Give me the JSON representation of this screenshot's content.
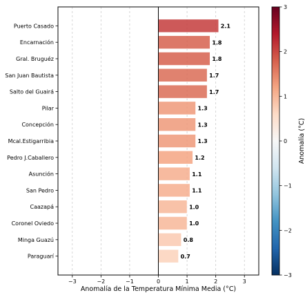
{
  "chart_data": {
    "type": "bar",
    "orientation": "horizontal",
    "categories": [
      "Puerto Casado",
      "Encarnación",
      "Gral. Bruguéz",
      "San Juan Bautista",
      "Salto del Guairá",
      "Pilar",
      "Concepción",
      "Mcal.Estigarribia",
      "Pedro J.Caballero",
      "Asunción",
      "San Pedro",
      "Caazapá",
      "Coronel Oviedo",
      "Minga Guazú",
      "Paraguarí"
    ],
    "values": [
      2.1,
      1.8,
      1.8,
      1.7,
      1.7,
      1.3,
      1.3,
      1.3,
      1.2,
      1.1,
      1.1,
      1.0,
      1.0,
      0.8,
      0.7
    ],
    "value_labels": [
      "2.1",
      "1.8",
      "1.8",
      "1.7",
      "1.7",
      "1.3",
      "1.3",
      "1.3",
      "1.2",
      "1.1",
      "1.1",
      "1.0",
      "1.0",
      "0.8",
      "0.7"
    ],
    "xlabel": "Anomalía de la Temperatura Mínima Media (°C)",
    "ylabel": "",
    "xlim": [
      -3.5,
      3.5
    ],
    "xticks": [
      -3,
      -2,
      -1,
      0,
      1,
      2,
      3
    ],
    "xtick_labels": [
      "−3",
      "−2",
      "−1",
      "0",
      "1",
      "2",
      "3"
    ],
    "grid": "vertical dashed",
    "zero_line": true,
    "colorbar": {
      "label": "Anomalía (°C)",
      "range": [
        -3,
        3
      ],
      "ticks": [
        -3,
        -2,
        -1,
        0,
        1,
        2,
        3
      ],
      "tick_labels": [
        "−3",
        "−2",
        "−1",
        "0",
        "1",
        "2",
        "3"
      ],
      "colormap": "RdBu_r"
    }
  }
}
